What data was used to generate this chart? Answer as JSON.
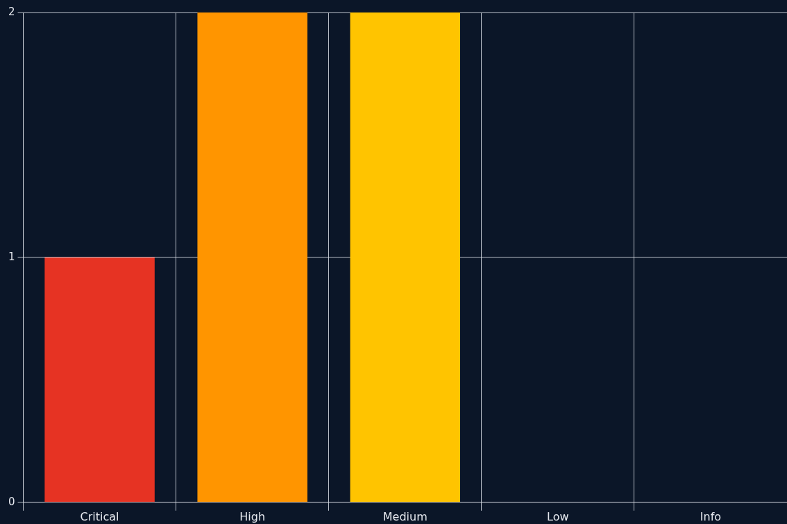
{
  "chart_data": {
    "type": "bar",
    "categories": [
      "Critical",
      "High",
      "Medium",
      "Low",
      "Info"
    ],
    "values": [
      1,
      2,
      2,
      0,
      0
    ],
    "colors": [
      "#e63323",
      "#ff9500",
      "#ffc400",
      "#00a0e0",
      "#8a94a6"
    ],
    "ylim": [
      0,
      2
    ],
    "yticks": [
      0,
      1,
      2
    ],
    "grid": true,
    "legend": false
  }
}
